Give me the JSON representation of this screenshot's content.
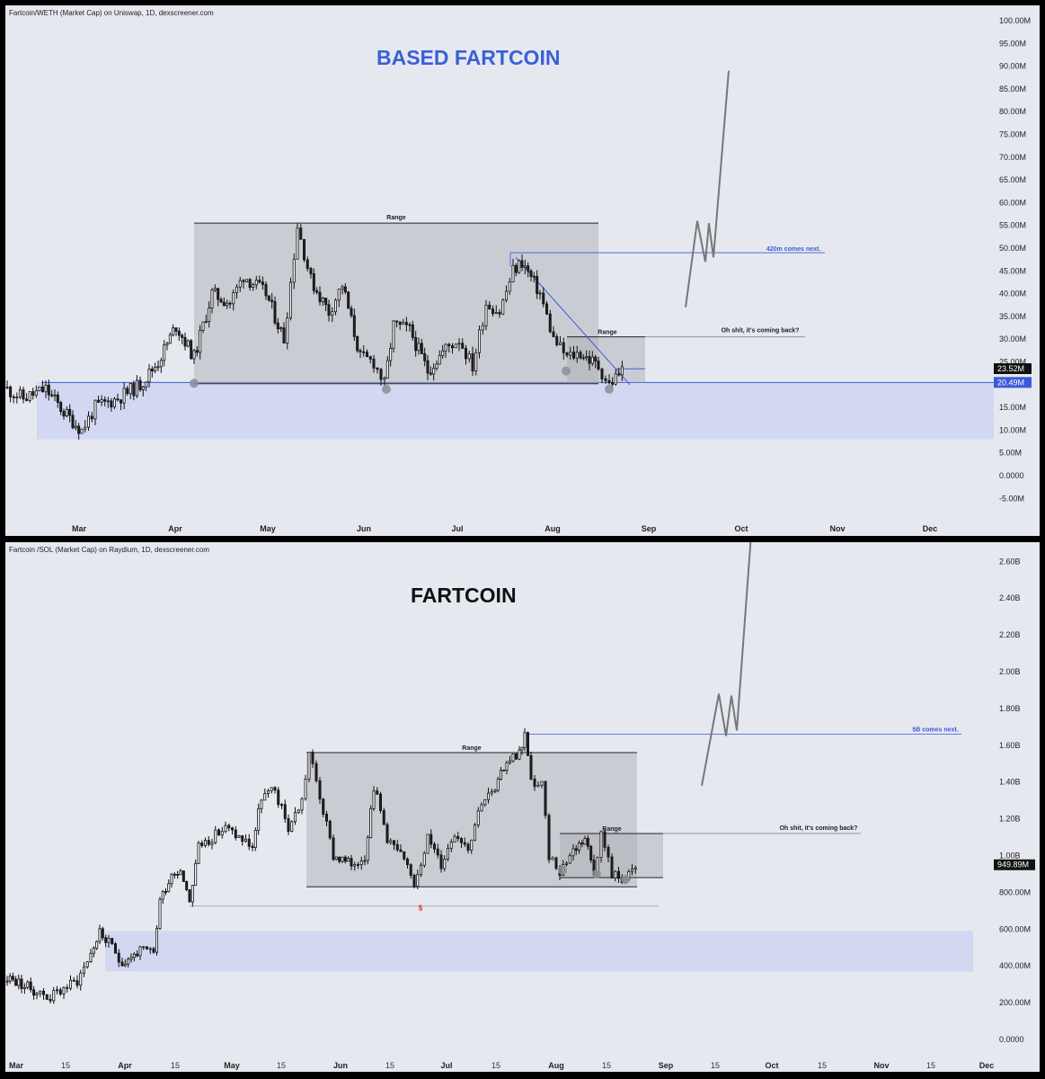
{
  "charts": [
    {
      "header": "Fartcoin/WETH (Market Cap) on Uniswap, 1D, dexscreener.com",
      "title": "BASED FARTCOIN",
      "title_color": "#3a5fd9",
      "y_ticks": [
        "100.00M",
        "95.00M",
        "90.00M",
        "85.00M",
        "80.00M",
        "75.00M",
        "70.00M",
        "65.00M",
        "60.00M",
        "55.00M",
        "50.00M",
        "45.00M",
        "40.00M",
        "35.00M",
        "30.00M",
        "25.00M",
        "20.00M",
        "15.00M",
        "10.00M",
        "5.00M",
        "0.0000",
        "-5.00M"
      ],
      "x_labels": [
        "Mar",
        "Apr",
        "May",
        "Jun",
        "Jul",
        "Aug",
        "Sep",
        "Oct",
        "Nov",
        "Dec"
      ],
      "price_tag": "23.52M",
      "level_tag": "20.49M",
      "annotations": {
        "range_big": "Range",
        "range_small": "Range",
        "target": "420m comes next.",
        "comeback": "Oh shit, it's coming back?"
      }
    },
    {
      "header": "Fartcoin /SOL (Market Cap) on Raydium, 1D, dexscreener.com",
      "title": "FARTCOIN",
      "title_color": "#111111",
      "y_ticks": [
        "2.60B",
        "2.40B",
        "2.20B",
        "2.00B",
        "1.80B",
        "1.60B",
        "1.40B",
        "1.20B",
        "1.00B",
        "800.00M",
        "600.00M",
        "400.00M",
        "200.00M",
        "0.0000"
      ],
      "x_labels": [
        "Mar",
        "15",
        "Apr",
        "15",
        "May",
        "15",
        "Jun",
        "15",
        "Jul",
        "15",
        "Aug",
        "15",
        "Sep",
        "15",
        "Oct",
        "15",
        "Nov",
        "15",
        "Dec"
      ],
      "price_tag": "949.89M",
      "annotations": {
        "range_big": "Range",
        "range_small": "Range",
        "target": "5B comes next.",
        "comeback": "Oh shit, it's coming back?",
        "dollar": "$"
      }
    }
  ],
  "chart_data": [
    {
      "type": "candlestick",
      "title": "BASED FARTCOIN",
      "unit": "USD market cap",
      "ylim": [
        -5000000,
        100000000
      ],
      "key_levels": {
        "support": 20490000,
        "last_price": 23520000,
        "range_high": 55500000,
        "target_line": 49000000
      },
      "approx_close_path": [
        {
          "x": "Feb 20",
          "y": 19
        },
        {
          "x": "Mar 01",
          "y": 18
        },
        {
          "x": "Mar 05",
          "y": 10
        },
        {
          "x": "Mar 10",
          "y": 15
        },
        {
          "x": "Mar 20",
          "y": 19
        },
        {
          "x": "Apr 01",
          "y": 22
        },
        {
          "x": "Apr 10",
          "y": 37
        },
        {
          "x": "Apr 20",
          "y": 44
        },
        {
          "x": "May 01",
          "y": 38
        },
        {
          "x": "May 10",
          "y": 55
        },
        {
          "x": "May 20",
          "y": 41
        },
        {
          "x": "Jun 01",
          "y": 29
        },
        {
          "x": "Jun 08",
          "y": 20
        },
        {
          "x": "Jun 15",
          "y": 35
        },
        {
          "x": "Jun 25",
          "y": 27
        },
        {
          "x": "Jul 05",
          "y": 26
        },
        {
          "x": "Jul 15",
          "y": 38
        },
        {
          "x": "Jul 18",
          "y": 47
        },
        {
          "x": "Jul 25",
          "y": 40
        },
        {
          "x": "Aug 01",
          "y": 29
        },
        {
          "x": "Aug 10",
          "y": 24
        },
        {
          "x": "Aug 15",
          "y": 21
        },
        {
          "x": "Aug 22",
          "y": 23.5
        }
      ],
      "projection": [
        {
          "x": "Sep 12",
          "y": 37
        },
        {
          "x": "Sep 15",
          "y": 56
        },
        {
          "x": "Sep 17",
          "y": 47
        },
        {
          "x": "Sep 18",
          "y": 55
        },
        {
          "x": "Sep 19",
          "y": 48
        },
        {
          "x": "Sep 25",
          "y": 89
        }
      ]
    },
    {
      "type": "candlestick",
      "title": "FARTCOIN",
      "unit": "USD market cap",
      "ylim": [
        0,
        2700000000
      ],
      "key_levels": {
        "last_price": 949890000,
        "range_high": 1560000000,
        "range_low": 830000000,
        "target_line": 1660000000
      },
      "approx_close_path": [
        {
          "x": "Mar 01",
          "y": 340
        },
        {
          "x": "Mar 10",
          "y": 230
        },
        {
          "x": "Mar 20",
          "y": 350
        },
        {
          "x": "Mar 25",
          "y": 580
        },
        {
          "x": "Apr 01",
          "y": 430
        },
        {
          "x": "Apr 05",
          "y": 750
        },
        {
          "x": "Apr 20",
          "y": 950
        },
        {
          "x": "May 01",
          "y": 1150
        },
        {
          "x": "May 10",
          "y": 1380
        },
        {
          "x": "May 20",
          "y": 1300
        },
        {
          "x": "May 25",
          "y": 1550
        },
        {
          "x": "Jun 01",
          "y": 1000
        },
        {
          "x": "Jun 08",
          "y": 880
        },
        {
          "x": "Jun 15",
          "y": 1420
        },
        {
          "x": "Jun 25",
          "y": 880
        },
        {
          "x": "Jul 10",
          "y": 1220
        },
        {
          "x": "Jul 20",
          "y": 1550
        },
        {
          "x": "Jul 23",
          "y": 1660
        },
        {
          "x": "Jul 28",
          "y": 1380
        },
        {
          "x": "Aug 05",
          "y": 920
        },
        {
          "x": "Aug 12",
          "y": 1110
        },
        {
          "x": "Aug 18",
          "y": 900
        },
        {
          "x": "Aug 25",
          "y": 950
        }
      ],
      "projection": [
        {
          "x": "Sep 17",
          "y": 1380
        },
        {
          "x": "Sep 21",
          "y": 1880
        },
        {
          "x": "Sep 23",
          "y": 1650
        },
        {
          "x": "Sep 25",
          "y": 1870
        },
        {
          "x": "Sep 27",
          "y": 1680
        },
        {
          "x": "Oct 03",
          "y": 2750
        }
      ]
    }
  ]
}
